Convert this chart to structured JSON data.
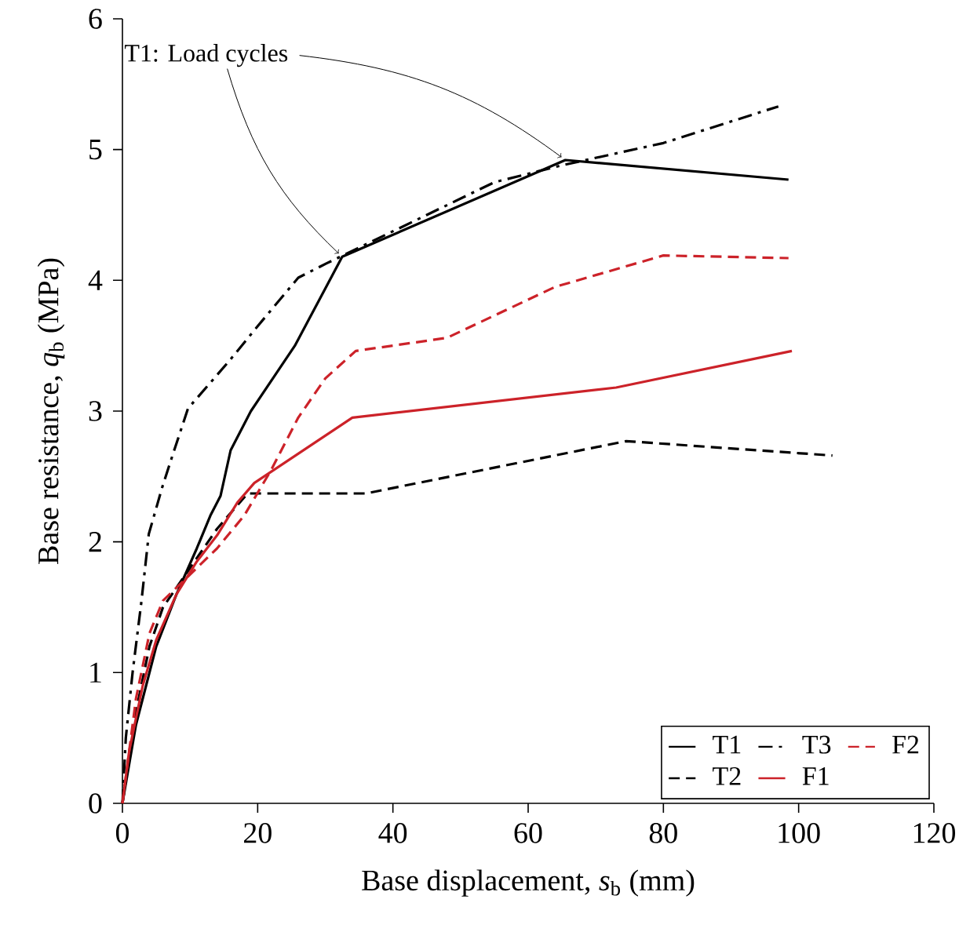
{
  "chart_data": {
    "type": "line",
    "xlabel": "Base displacement, *s*$_{b}$ (mm)",
    "ylabel": "Base resistance, *q*$_{b}$ (MPa)",
    "xlim": [
      0,
      120
    ],
    "ylim": [
      0,
      6
    ],
    "xticks": [
      0,
      20,
      40,
      60,
      80,
      100,
      120
    ],
    "yticks": [
      0,
      1,
      2,
      3,
      4,
      5,
      6
    ],
    "grid": false,
    "legend": "bottom right",
    "marker": "none",
    "annotations": [
      {
        "text": "T1: Load cycles",
        "x": 32.5,
        "y": 4.18
      }
    ],
    "series": [
      {
        "name": "T1",
        "color": "#000000",
        "line_style": "solid",
        "x": [
          0,
          2,
          5,
          8,
          11,
          13,
          14.5,
          16,
          19,
          25.5,
          32.5,
          65.5,
          98.5
        ],
        "values": [
          0,
          0.6,
          1.2,
          1.6,
          1.95,
          2.2,
          2.35,
          2.7,
          3.0,
          3.5,
          4.18,
          4.92,
          4.77
        ]
      },
      {
        "name": "T2",
        "color": "#000000",
        "line_style": "dashed",
        "x": [
          0,
          2,
          4,
          6,
          10,
          14,
          18.5,
          36,
          74.5,
          105
        ],
        "values": [
          0,
          0.7,
          1.2,
          1.5,
          1.8,
          2.1,
          2.37,
          2.37,
          2.77,
          2.66
        ]
      },
      {
        "name": "T3",
        "color": "#000000",
        "line_style": "dashdot",
        "x": [
          0,
          0.5,
          1.5,
          2.8,
          3.9,
          5.9,
          7.4,
          9.7,
          15.9,
          20,
          26,
          30.2,
          33,
          45,
          55,
          65,
          80,
          97
        ],
        "values": [
          0,
          0.5,
          1.0,
          1.54,
          2.06,
          2.42,
          2.66,
          3.02,
          3.39,
          3.65,
          4.02,
          4.13,
          4.2,
          4.5,
          4.75,
          4.88,
          5.05,
          5.33
        ]
      },
      {
        "name": "F1",
        "color": "#cc2229",
        "line_style": "solid",
        "x": [
          0,
          1,
          3,
          5,
          8,
          11,
          14,
          17,
          19.5,
          34,
          73,
          99
        ],
        "values": [
          0,
          0.4,
          0.9,
          1.25,
          1.6,
          1.85,
          2.05,
          2.3,
          2.45,
          2.95,
          3.18,
          3.46
        ]
      },
      {
        "name": "F2",
        "color": "#cc2229",
        "line_style": "dashed",
        "x": [
          0,
          2,
          4,
          6,
          10,
          14,
          18,
          22,
          26,
          30,
          34.5,
          48,
          64,
          80,
          98.5
        ],
        "values": [
          0,
          0.8,
          1.3,
          1.55,
          1.75,
          1.95,
          2.2,
          2.55,
          2.95,
          3.25,
          3.46,
          3.56,
          3.95,
          4.19,
          4.17
        ]
      }
    ]
  }
}
